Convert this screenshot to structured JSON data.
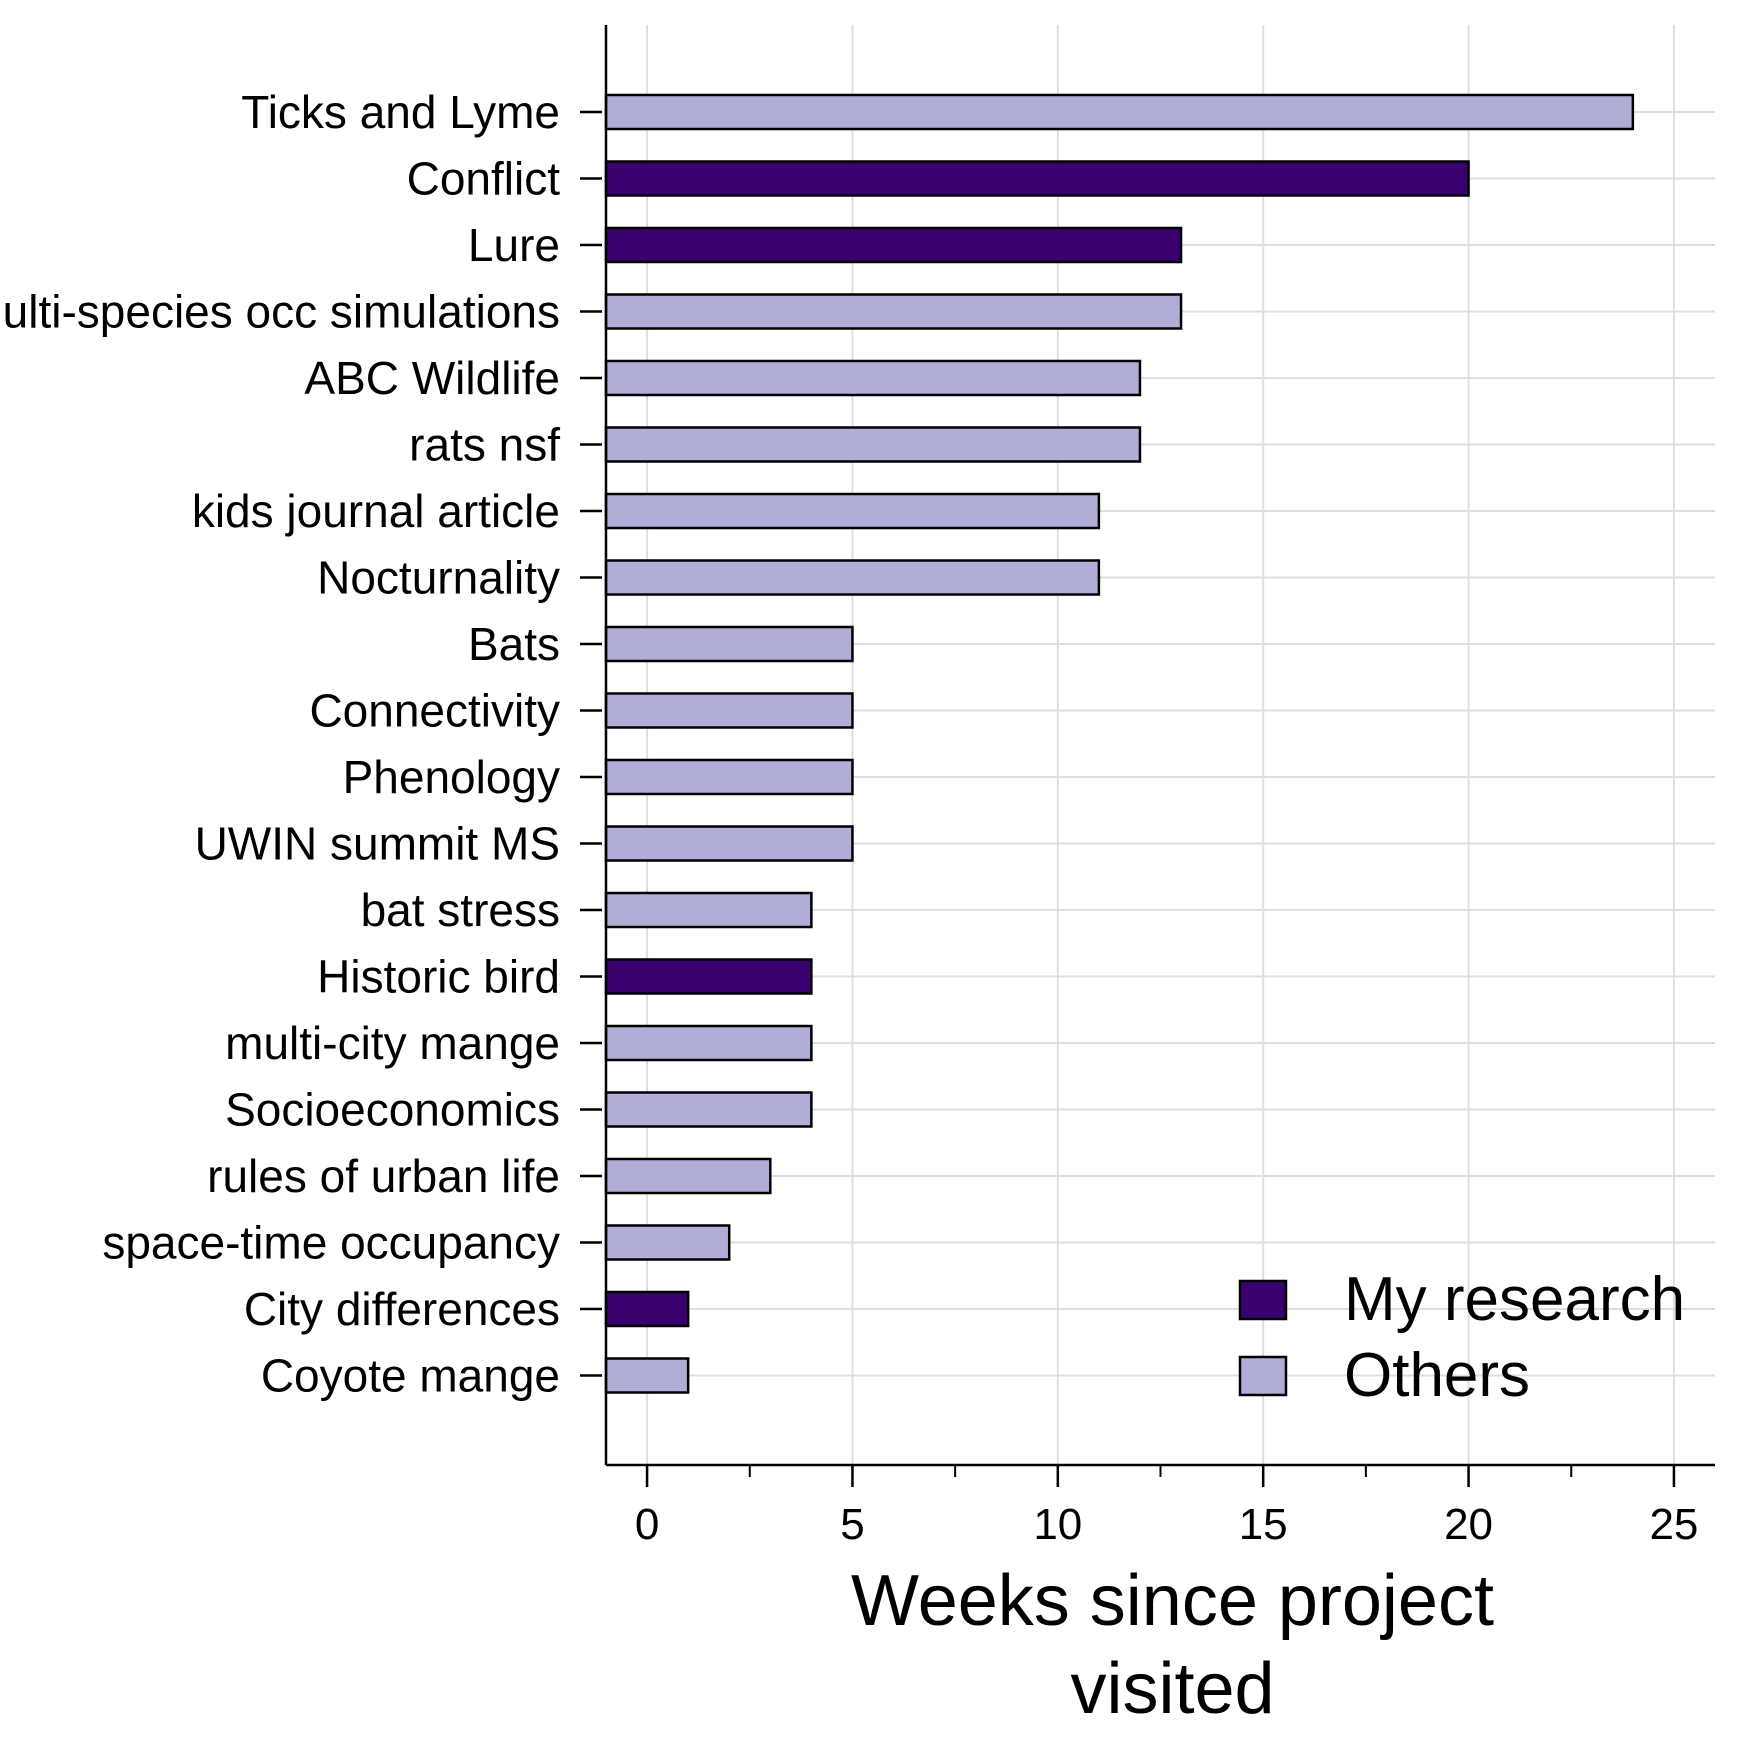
{
  "chart_data": {
    "type": "bar",
    "orientation": "horizontal",
    "categories": [
      "Ticks and Lyme",
      "Conflict",
      "Lure",
      "Multi-species occ simulations",
      "ABC Wildlife",
      "rats nsf",
      "kids journal article",
      "Nocturnality",
      "Bats",
      "Connectivity",
      "Phenology",
      "UWIN summit MS",
      "bat stress",
      "Historic bird",
      "multi-city mange",
      "Socioeconomics",
      "rules of urban life",
      "space-time occupancy",
      "City differences",
      "Coyote mange"
    ],
    "values": [
      24,
      20,
      13,
      13,
      12,
      12,
      11,
      11,
      5,
      5,
      5,
      5,
      4,
      4,
      4,
      4,
      3,
      2,
      1,
      1
    ],
    "groups": [
      "Others",
      "My research",
      "My research",
      "Others",
      "Others",
      "Others",
      "Others",
      "Others",
      "Others",
      "Others",
      "Others",
      "Others",
      "Others",
      "My research",
      "Others",
      "Others",
      "Others",
      "Others",
      "My research",
      "Others"
    ],
    "legend": [
      {
        "name": "My research",
        "color": "#3b0070"
      },
      {
        "name": "Others",
        "color": "#b0aed6"
      }
    ],
    "xlabel_lines": [
      "Weeks since project",
      "visited"
    ],
    "xlim": [
      -1,
      26
    ],
    "xticks": [
      0,
      5,
      10,
      15,
      20,
      25
    ],
    "xtick_labels": [
      "0",
      "5",
      "10",
      "15",
      "20",
      "25"
    ],
    "grid": true,
    "legend_position": "bottom-right"
  }
}
